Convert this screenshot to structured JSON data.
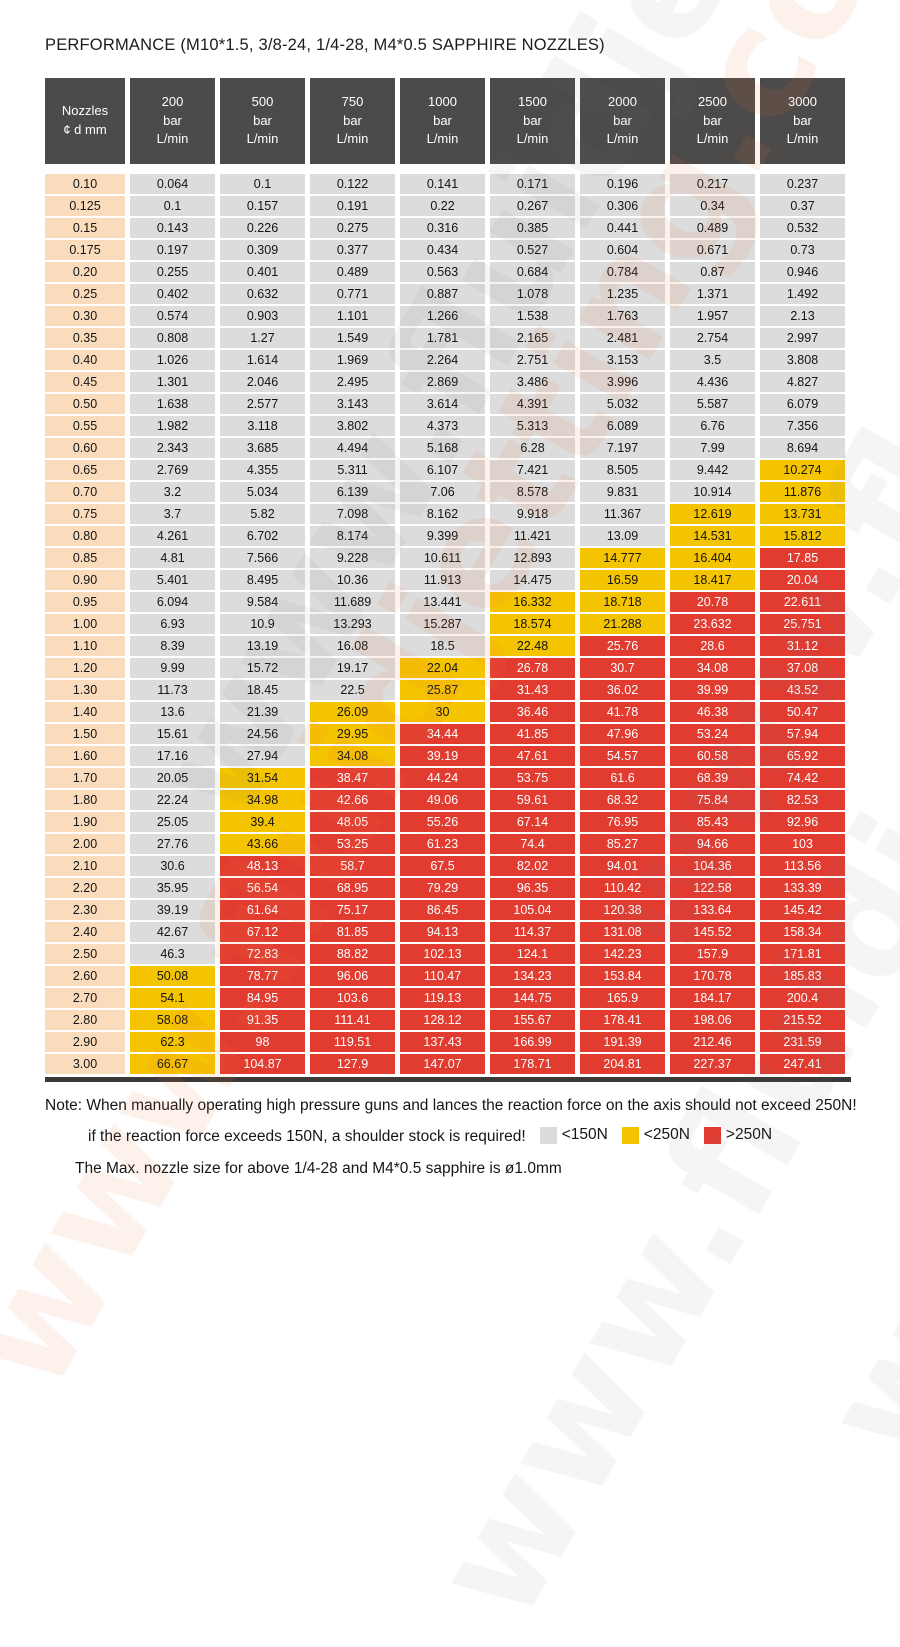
{
  "title": "PERFORMANCE (M10*1.5, 3/8-24, 1/4-28, M4*0.5 SAPPHIRE NOZZLES)",
  "watermark": {
    "text": "www.fluidjetting.com"
  },
  "table": {
    "header": {
      "nozzle_line1": "Nozzles",
      "nozzle_line2": "¢ d mm",
      "pressures": [
        "200",
        "500",
        "750",
        "1000",
        "1500",
        "2000",
        "2500",
        "3000"
      ],
      "bar_label": "bar",
      "flow_label": "L/min"
    },
    "rows": [
      {
        "size": "0.10",
        "values": [
          "0.064",
          "0.1",
          "0.122",
          "0.141",
          "0.171",
          "0.196",
          "0.217",
          "0.237"
        ],
        "colors": "gggggggg"
      },
      {
        "size": "0.125",
        "values": [
          "0.1",
          "0.157",
          "0.191",
          "0.22",
          "0.267",
          "0.306",
          "0.34",
          "0.37"
        ],
        "colors": "gggggggg"
      },
      {
        "size": "0.15",
        "values": [
          "0.143",
          "0.226",
          "0.275",
          "0.316",
          "0.385",
          "0.441",
          "0.489",
          "0.532"
        ],
        "colors": "gggggggg"
      },
      {
        "size": "0.175",
        "values": [
          "0.197",
          "0.309",
          "0.377",
          "0.434",
          "0.527",
          "0.604",
          "0.671",
          "0.73"
        ],
        "colors": "gggggggg"
      },
      {
        "size": "0.20",
        "values": [
          "0.255",
          "0.401",
          "0.489",
          "0.563",
          "0.684",
          "0.784",
          "0.87",
          "0.946"
        ],
        "colors": "gggggggg"
      },
      {
        "size": "0.25",
        "values": [
          "0.402",
          "0.632",
          "0.771",
          "0.887",
          "1.078",
          "1.235",
          "1.371",
          "1.492"
        ],
        "colors": "gggggggg"
      },
      {
        "size": "0.30",
        "values": [
          "0.574",
          "0.903",
          "1.101",
          "1.266",
          "1.538",
          "1.763",
          "1.957",
          "2.13"
        ],
        "colors": "gggggggg"
      },
      {
        "size": "0.35",
        "values": [
          "0.808",
          "1.27",
          "1.549",
          "1.781",
          "2.165",
          "2.481",
          "2.754",
          "2.997"
        ],
        "colors": "gggggggg"
      },
      {
        "size": "0.40",
        "values": [
          "1.026",
          "1.614",
          "1.969",
          "2.264",
          "2.751",
          "3.153",
          "3.5",
          "3.808"
        ],
        "colors": "gggggggg"
      },
      {
        "size": "0.45",
        "values": [
          "1.301",
          "2.046",
          "2.495",
          "2.869",
          "3.486",
          "3.996",
          "4.436",
          "4.827"
        ],
        "colors": "gggggggg"
      },
      {
        "size": "0.50",
        "values": [
          "1.638",
          "2.577",
          "3.143",
          "3.614",
          "4.391",
          "5.032",
          "5.587",
          "6.079"
        ],
        "colors": "gggggggg"
      },
      {
        "size": "0.55",
        "values": [
          "1.982",
          "3.118",
          "3.802",
          "4.373",
          "5.313",
          "6.089",
          "6.76",
          "7.356"
        ],
        "colors": "gggggggg"
      },
      {
        "size": "0.60",
        "values": [
          "2.343",
          "3.685",
          "4.494",
          "5.168",
          "6.28",
          "7.197",
          "7.99",
          "8.694"
        ],
        "colors": "gggggggg"
      },
      {
        "size": "0.65",
        "values": [
          "2.769",
          "4.355",
          "5.311",
          "6.107",
          "7.421",
          "8.505",
          "9.442",
          "10.274"
        ],
        "colors": "gggggggy"
      },
      {
        "size": "0.70",
        "values": [
          "3.2",
          "5.034",
          "6.139",
          "7.06",
          "8.578",
          "9.831",
          "10.914",
          "11.876"
        ],
        "colors": "gggggggy"
      },
      {
        "size": "0.75",
        "values": [
          "3.7",
          "5.82",
          "7.098",
          "8.162",
          "9.918",
          "11.367",
          "12.619",
          "13.731"
        ],
        "colors": "ggggggyy"
      },
      {
        "size": "0.80",
        "values": [
          "4.261",
          "6.702",
          "8.174",
          "9.399",
          "11.421",
          "13.09",
          "14.531",
          "15.812"
        ],
        "colors": "ggggggyy"
      },
      {
        "size": "0.85",
        "values": [
          "4.81",
          "7.566",
          "9.228",
          "10.611",
          "12.893",
          "14.777",
          "16.404",
          "17.85"
        ],
        "colors": "gggggyyr"
      },
      {
        "size": "0.90",
        "values": [
          "5.401",
          "8.495",
          "10.36",
          "11.913",
          "14.475",
          "16.59",
          "18.417",
          "20.04"
        ],
        "colors": "gggggyyr"
      },
      {
        "size": "0.95",
        "values": [
          "6.094",
          "9.584",
          "11.689",
          "13.441",
          "16.332",
          "18.718",
          "20.78",
          "22.611"
        ],
        "colors": "ggggyyrr"
      },
      {
        "size": "1.00",
        "values": [
          "6.93",
          "10.9",
          "13.293",
          "15.287",
          "18.574",
          "21.288",
          "23.632",
          "25.751"
        ],
        "colors": "ggggyyrr"
      },
      {
        "size": "1.10",
        "values": [
          "8.39",
          "13.19",
          "16.08",
          "18.5",
          "22.48",
          "25.76",
          "28.6",
          "31.12"
        ],
        "colors": "ggggyrrr"
      },
      {
        "size": "1.20",
        "values": [
          "9.99",
          "15.72",
          "19.17",
          "22.04",
          "26.78",
          "30.7",
          "34.08",
          "37.08"
        ],
        "colors": "gggyrrrr"
      },
      {
        "size": "1.30",
        "values": [
          "11.73",
          "18.45",
          "22.5",
          "25.87",
          "31.43",
          "36.02",
          "39.99",
          "43.52"
        ],
        "colors": "gggyrrrr"
      },
      {
        "size": "1.40",
        "values": [
          "13.6",
          "21.39",
          "26.09",
          "30",
          "36.46",
          "41.78",
          "46.38",
          "50.47"
        ],
        "colors": "ggyyrrrr"
      },
      {
        "size": "1.50",
        "values": [
          "15.61",
          "24.56",
          "29.95",
          "34.44",
          "41.85",
          "47.96",
          "53.24",
          "57.94"
        ],
        "colors": "ggyrrrrr"
      },
      {
        "size": "1.60",
        "values": [
          "17.16",
          "27.94",
          "34.08",
          "39.19",
          "47.61",
          "54.57",
          "60.58",
          "65.92"
        ],
        "colors": "ggyrrrrr"
      },
      {
        "size": "1.70",
        "values": [
          "20.05",
          "31.54",
          "38.47",
          "44.24",
          "53.75",
          "61.6",
          "68.39",
          "74.42"
        ],
        "colors": "gyrrrrrr"
      },
      {
        "size": "1.80",
        "values": [
          "22.24",
          "34.98",
          "42.66",
          "49.06",
          "59.61",
          "68.32",
          "75.84",
          "82.53"
        ],
        "colors": "gyrrrrrr"
      },
      {
        "size": "1.90",
        "values": [
          "25.05",
          "39.4",
          "48.05",
          "55.26",
          "67.14",
          "76.95",
          "85.43",
          "92.96"
        ],
        "colors": "gyrrrrrr"
      },
      {
        "size": "2.00",
        "values": [
          "27.76",
          "43.66",
          "53.25",
          "61.23",
          "74.4",
          "85.27",
          "94.66",
          "103"
        ],
        "colors": "gyrrrrrr"
      },
      {
        "size": "2.10",
        "values": [
          "30.6",
          "48.13",
          "58.7",
          "67.5",
          "82.02",
          "94.01",
          "104.36",
          "113.56"
        ],
        "colors": "grrrrrrr"
      },
      {
        "size": "2.20",
        "values": [
          "35.95",
          "56.54",
          "68.95",
          "79.29",
          "96.35",
          "110.42",
          "122.58",
          "133.39"
        ],
        "colors": "grrrrrrr"
      },
      {
        "size": "2.30",
        "values": [
          "39.19",
          "61.64",
          "75.17",
          "86.45",
          "105.04",
          "120.38",
          "133.64",
          "145.42"
        ],
        "colors": "grrrrrrr"
      },
      {
        "size": "2.40",
        "values": [
          "42.67",
          "67.12",
          "81.85",
          "94.13",
          "114.37",
          "131.08",
          "145.52",
          "158.34"
        ],
        "colors": "grrrrrrr"
      },
      {
        "size": "2.50",
        "values": [
          "46.3",
          "72.83",
          "88.82",
          "102.13",
          "124.1",
          "142.23",
          "157.9",
          "171.81"
        ],
        "colors": "grrrrrrr"
      },
      {
        "size": "2.60",
        "values": [
          "50.08",
          "78.77",
          "96.06",
          "110.47",
          "134.23",
          "153.84",
          "170.78",
          "185.83"
        ],
        "colors": "yrrrrrrr"
      },
      {
        "size": "2.70",
        "values": [
          "54.1",
          "84.95",
          "103.6",
          "119.13",
          "144.75",
          "165.9",
          "184.17",
          "200.4"
        ],
        "colors": "yrrrrrrr"
      },
      {
        "size": "2.80",
        "values": [
          "58.08",
          "91.35",
          "111.41",
          "128.12",
          "155.67",
          "178.41",
          "198.06",
          "215.52"
        ],
        "colors": "yrrrrrrr"
      },
      {
        "size": "2.90",
        "values": [
          "62.3",
          "98",
          "119.51",
          "137.43",
          "166.99",
          "191.39",
          "212.46",
          "231.59"
        ],
        "colors": "yrrrrrrr"
      },
      {
        "size": "3.00",
        "values": [
          "66.67",
          "104.87",
          "127.9",
          "147.07",
          "178.71",
          "204.81",
          "227.37",
          "247.41"
        ],
        "colors": "yrrrrrrr"
      }
    ]
  },
  "note": {
    "line1": "Note: When manually operating high pressure guns and lances the reaction force on the axis should not exceed 250N!",
    "line2": "if the reaction force exceeds 150N, a shoulder stock is required!",
    "line3": "The Max. nozzle size for above  1/4-28 and M4*0.5 sapphire  is ø1.0mm",
    "legend": [
      {
        "label": "<150N",
        "color": "#dcdcdc"
      },
      {
        "label": "<250N",
        "color": "#f5c400"
      },
      {
        "label": ">250N",
        "color": "#e23b30"
      }
    ]
  },
  "colors": {
    "header_bg": "#4d4b49",
    "nozzle_column_bg": "#fadcbc",
    "low_force_gray": "#dcdcdc",
    "mid_force_yellow": "#f5c400",
    "high_force_red": "#e23b30",
    "table_bottom_bar": "#3b3937"
  }
}
